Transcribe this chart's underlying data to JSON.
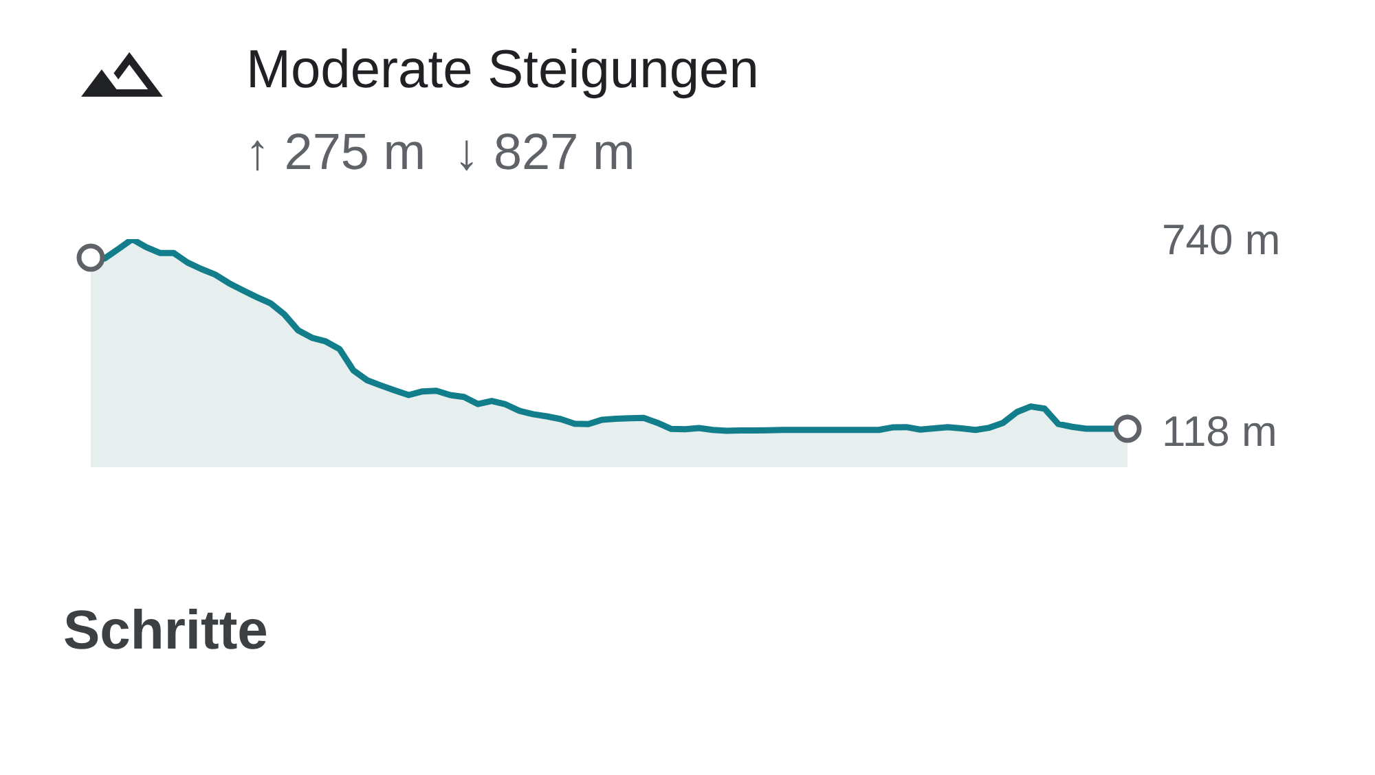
{
  "chart_data": {
    "type": "area",
    "title": "Moderate Steigungen",
    "subtitle": "↑ 275 m  ↓ 827 m",
    "annotations": [
      "Schritte"
    ],
    "categories": [
      null,
      null,
      null,
      null,
      null,
      null,
      null,
      null,
      null,
      null,
      null,
      null,
      null,
      null,
      null,
      null,
      null,
      null,
      null,
      null,
      null,
      null,
      null,
      null,
      null,
      null,
      null,
      null,
      null,
      null,
      null,
      null,
      null,
      null,
      null,
      null,
      null,
      null,
      null,
      null,
      null,
      null,
      null,
      null,
      null,
      null,
      null,
      null,
      null,
      null,
      null,
      null,
      null,
      null,
      null,
      null,
      null,
      null,
      null,
      null,
      null,
      null,
      null,
      null,
      null,
      null,
      null,
      null,
      null,
      null,
      null,
      null,
      null,
      null,
      null,
      null
    ],
    "ylim": [
      0,
      740
    ],
    "yticks": [
      {
        "value": 740,
        "label": "740 m"
      },
      {
        "value": 118,
        "label": "118 m"
      }
    ],
    "tick_labels": "y",
    "series": [
      {
        "color": "#127d8b",
        "values": [
          680,
          677,
          708,
          740,
          714,
          695,
          695,
          664,
          643,
          625,
          597,
          574,
          552,
          532,
          496,
          444,
          420,
          408,
          383,
          314,
          282,
          265,
          249,
          234,
          246,
          248,
          234,
          228,
          205,
          215,
          204,
          183,
          172,
          165,
          156,
          141,
          140,
          154,
          157,
          159,
          160,
          144,
          124,
          123,
          127,
          121,
          118,
          119,
          119,
          120,
          121,
          121,
          121,
          121,
          121,
          121,
          121,
          121,
          129,
          130,
          122,
          126,
          130,
          126,
          121,
          128,
          144,
          179,
          197,
          190,
          140,
          131,
          125,
          125,
          125,
          125
        ]
      },
      {
        "type": "scatter",
        "color": "#5f6368",
        "marker": "circle",
        "values": [
          680,
          null,
          null,
          null,
          null,
          null,
          null,
          null,
          null,
          null,
          null,
          null,
          null,
          null,
          null,
          null,
          null,
          null,
          null,
          null,
          null,
          null,
          null,
          null,
          null,
          null,
          null,
          null,
          null,
          null,
          null,
          null,
          null,
          null,
          null,
          null,
          null,
          null,
          null,
          null,
          null,
          null,
          null,
          null,
          null,
          null,
          null,
          null,
          null,
          null,
          null,
          null,
          null,
          null,
          null,
          null,
          null,
          null,
          null,
          null,
          null,
          null,
          null,
          null,
          null,
          null,
          null,
          null,
          null,
          null,
          null,
          null,
          null,
          null,
          null,
          125
        ]
      }
    ]
  }
}
